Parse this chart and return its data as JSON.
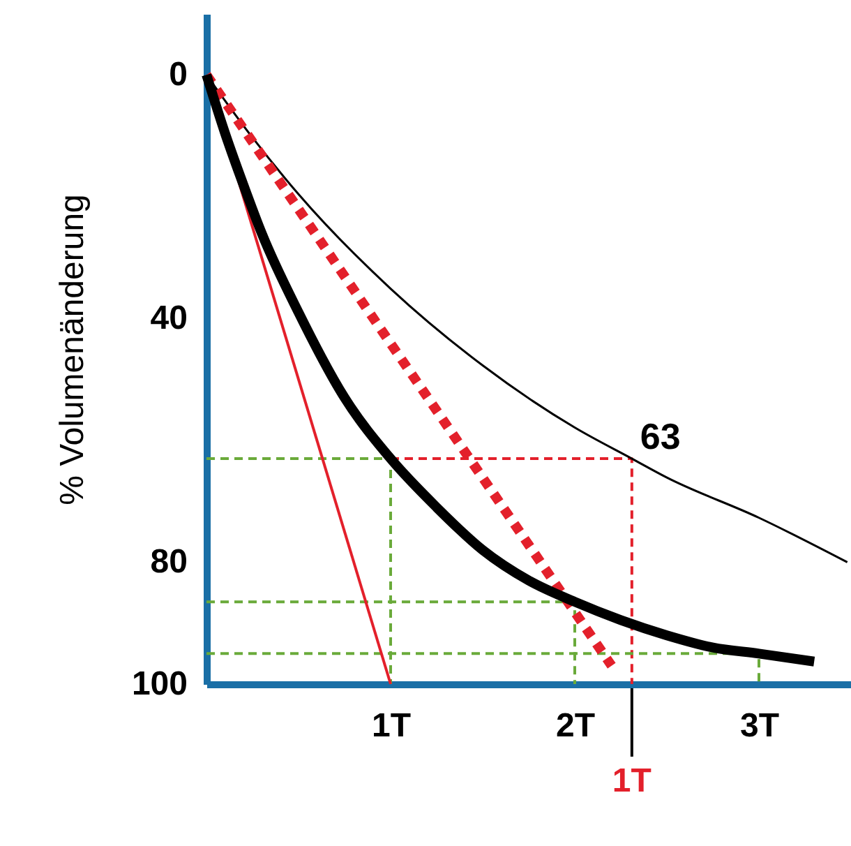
{
  "chart_data": {
    "type": "line",
    "ylabel": "% Volumenänderung",
    "xlim": [
      0,
      3.5
    ],
    "xticks": [
      {
        "value": 1,
        "label": "1T"
      },
      {
        "value": 2,
        "label": "2T"
      },
      {
        "value": 3,
        "label": "3T"
      }
    ],
    "ylim": [
      100,
      -10
    ],
    "yticks": [
      0,
      40,
      80,
      100
    ],
    "grid": false,
    "marker": "none",
    "series": [
      {
        "color": "#6aaa3a",
        "line_style": "dashed",
        "x": [
          0,
          1,
          1
        ],
        "values": [
          63,
          63,
          100
        ]
      },
      {
        "color": "#e3202b",
        "line_style": "dashed",
        "x": [
          1,
          2.31,
          2.31
        ],
        "values": [
          63,
          63,
          100
        ]
      },
      {
        "color": "#6aaa3a",
        "line_style": "dashed",
        "x": [
          0,
          2,
          2
        ],
        "values": [
          86.5,
          86.5,
          100
        ]
      },
      {
        "color": "#6aaa3a",
        "line_style": "dashed",
        "x": [
          0,
          3,
          3
        ],
        "values": [
          95,
          95,
          100
        ]
      },
      {
        "color": "#000000",
        "line_style": "solid",
        "x": [
          0,
          0.25,
          0.5,
          1,
          1.5,
          2,
          2.31,
          2.5,
          3,
          3.48
        ],
        "values": [
          0,
          10.3,
          19.6,
          35.1,
          47.7,
          57.9,
          63,
          66.1,
          72.7,
          80
        ]
      },
      {
        "color": "#e3202b",
        "line_style": "solid",
        "x": [
          0,
          1
        ],
        "values": [
          0,
          100
        ]
      },
      {
        "color": "#e3202b",
        "line_style": "dotted",
        "x": [
          0,
          2.2
        ],
        "values": [
          0,
          97
        ]
      },
      {
        "color": "#000000",
        "line_style": "solid",
        "x": [
          0,
          0.1,
          0.2,
          0.3,
          0.5,
          0.75,
          1,
          1.25,
          1.5,
          1.75,
          2,
          2.25,
          2.5,
          2.75,
          3,
          3.3
        ],
        "values": [
          0,
          9.5,
          18,
          26,
          39,
          53,
          63,
          71,
          78,
          83,
          86.5,
          89.5,
          92,
          94,
          95,
          96.3
        ]
      }
    ],
    "annotations": [
      {
        "text": "63",
        "x": 2.31,
        "y": 63
      },
      {
        "text": "1T",
        "x": 2.31
      }
    ]
  }
}
